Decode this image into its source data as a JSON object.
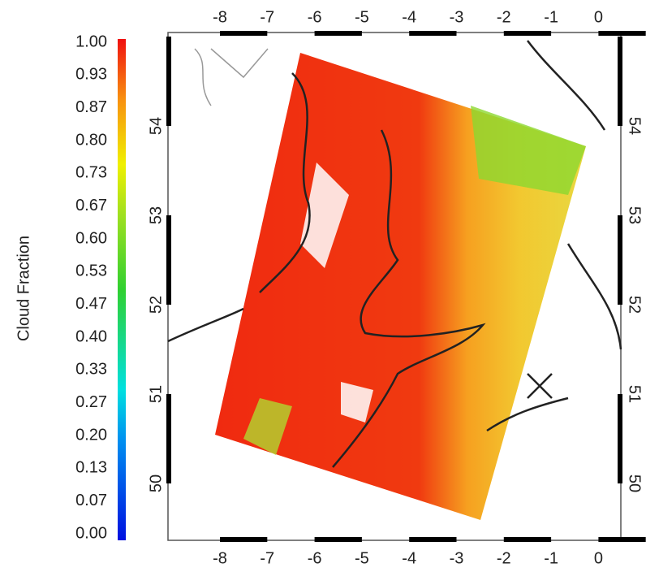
{
  "colorbar": {
    "label": "Cloud Fraction",
    "ticks": [
      "1.00",
      "0.93",
      "0.87",
      "0.80",
      "0.73",
      "0.67",
      "0.60",
      "0.53",
      "0.47",
      "0.40",
      "0.33",
      "0.27",
      "0.20",
      "0.13",
      "0.07",
      "0.00"
    ]
  },
  "axes": {
    "x_ticks": [
      "-8",
      "-7",
      "-6",
      "-5",
      "-4",
      "-3",
      "-2",
      "-1",
      "0"
    ],
    "y_ticks": [
      "54",
      "53",
      "52",
      "51",
      "50"
    ]
  }
}
